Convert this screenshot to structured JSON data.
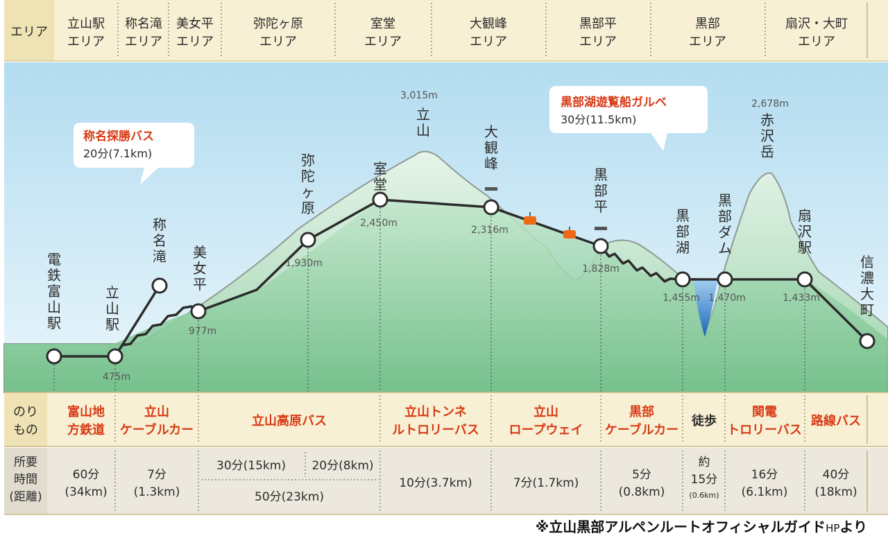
{
  "header": {
    "row_label": "エリア",
    "areas": [
      [
        "立山駅",
        "エリア"
      ],
      [
        "称名滝",
        "エリア"
      ],
      [
        "美女平",
        "エリア"
      ],
      [
        "弥陀ヶ原",
        "エリア"
      ],
      [
        "室堂",
        "エリア"
      ],
      [
        "大観峰",
        "エリア"
      ],
      [
        "黒部平",
        "エリア"
      ],
      [
        "黒部",
        "エリア"
      ],
      [
        "扇沢・大町",
        "エリア"
      ]
    ]
  },
  "profile": {
    "peaks": [
      {
        "name": "立山",
        "elevation": "3,015m"
      },
      {
        "name": "赤沢岳",
        "elevation": "2,678m"
      }
    ],
    "stations": [
      {
        "name": "電鉄富山駅",
        "elevation": ""
      },
      {
        "name": "立山駅",
        "elevation": "475m"
      },
      {
        "name": "称名滝",
        "elevation": ""
      },
      {
        "name": "美女平",
        "elevation": "977m"
      },
      {
        "name": "弥陀ヶ原",
        "elevation": "1,930m"
      },
      {
        "name": "室堂",
        "elevation": "2,450m"
      },
      {
        "name": "大観峰",
        "elevation": "2,316m"
      },
      {
        "name": "黒部平",
        "elevation": "1,828m"
      },
      {
        "name": "黒部湖",
        "elevation": "1,455m"
      },
      {
        "name": "黒部ダム",
        "elevation": "1,470m"
      },
      {
        "name": "扇沢駅",
        "elevation": "1,433m"
      },
      {
        "name": "信濃大町",
        "elevation": ""
      }
    ],
    "callouts": [
      {
        "title": "称名探勝バス",
        "detail": "20分(7.1km)"
      },
      {
        "title": "黒部湖遊覧船ガルベ",
        "detail": "30分(11.5km)"
      }
    ]
  },
  "transport": {
    "row_label": "のりもの",
    "items": [
      "富山地方鉄道",
      "立山ケーブルカー",
      "立山高原バス",
      "立山トンネルトロリーバス",
      "立山ロープウェイ",
      "黒部ケーブルカー",
      "徒歩",
      "関電トロリーバス",
      "路線バス"
    ]
  },
  "time": {
    "row_label": "所要時間(距離)",
    "values": [
      "60分(34km)",
      "7分(1.3km)",
      "30分(15km)",
      "20分(8km)",
      "50分(23km)",
      "10分(3.7km)",
      "7分(1.7km)",
      "5分(0.8km)",
      "約15分(0.6km)",
      "16分(6.1km)",
      "40分(18km)"
    ]
  },
  "credit": {
    "main": "※立山黒部アルペンルートオフィシャルガイド",
    "hp": "HP",
    "suffix": "より"
  }
}
